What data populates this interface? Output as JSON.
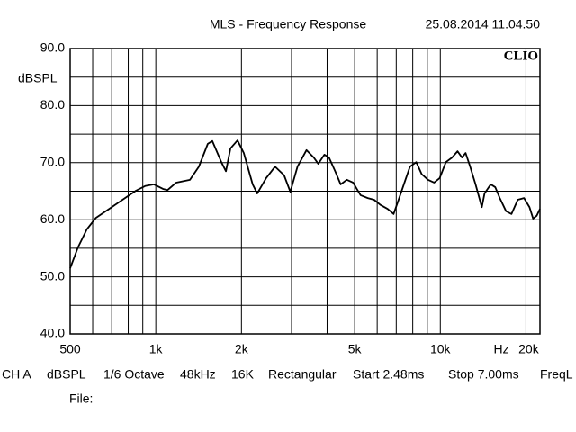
{
  "chart_data": {
    "type": "line",
    "title": "MLS - Frequency Response",
    "timestamp": "25.08.2014 11.04.50",
    "brand": "CLIO",
    "ylabel": "dBSPL",
    "xlabel": "Hz",
    "log_x": true,
    "grid": true,
    "color": "#000000",
    "xlim": [
      500,
      22400
    ],
    "ylim": [
      40,
      90
    ],
    "xticks": [
      500,
      {
        "value": 1000,
        "label": "1k"
      },
      {
        "value": 2000,
        "label": "2k"
      },
      {
        "value": 5000,
        "label": "5k"
      },
      {
        "value": 10000,
        "label": "10k"
      },
      {
        "value": 20000,
        "label": "20k"
      }
    ],
    "xminor": [
      600,
      700,
      800,
      900,
      3000,
      4000,
      6000,
      7000,
      8000,
      9000
    ],
    "yticks": [
      {
        "value": 40,
        "label": "40.0"
      },
      {
        "value": 50,
        "label": "50.0"
      },
      {
        "value": 60,
        "label": "60.0"
      },
      {
        "value": 70,
        "label": "70.0"
      },
      {
        "value": 80,
        "label": "80.0"
      },
      {
        "value": 90,
        "label": "90.0"
      }
    ],
    "yminor": [
      45,
      55,
      65,
      75,
      85
    ],
    "x": [
      500,
      532,
      572,
      615,
      686,
      764,
      852,
      917,
      985,
      1060,
      1100,
      1180,
      1318,
      1417,
      1523,
      1580,
      1700,
      1764,
      1830,
      1937,
      2038,
      2190,
      2272,
      2443,
      2626,
      2824,
      2970,
      3148,
      3386,
      3592,
      3724,
      3914,
      4063,
      4270,
      4464,
      4692,
      4936,
      5245,
      5556,
      5850,
      6157,
      6529,
      6852,
      7170,
      7541,
      7822,
      8230,
      8600,
      9049,
      9513,
      9950,
      10461,
      10998,
      11497,
      11919,
      12270,
      12732,
      13300,
      13995,
      14304,
      15042,
      15600,
      16182,
      17023,
      17787,
      18720,
      19692,
      20580,
      21190,
      21820,
      22400
    ],
    "values": [
      51.5,
      55.1,
      58.3,
      60.3,
      61.9,
      63.5,
      65.1,
      65.9,
      66.2,
      65.4,
      65.2,
      66.5,
      67.0,
      69.3,
      73.3,
      73.8,
      70.1,
      68.5,
      72.5,
      73.9,
      71.7,
      66.2,
      64.6,
      67.3,
      69.3,
      67.8,
      64.9,
      69.3,
      72.2,
      70.9,
      69.8,
      71.4,
      70.9,
      68.5,
      66.2,
      67.0,
      66.5,
      64.3,
      63.8,
      63.5,
      62.6,
      61.9,
      61.0,
      63.8,
      67.0,
      69.3,
      70.1,
      68.0,
      67.0,
      66.5,
      67.3,
      70.1,
      70.9,
      72.0,
      70.9,
      71.7,
      69.3,
      66.2,
      62.2,
      64.6,
      66.2,
      65.7,
      63.8,
      61.5,
      61.0,
      63.5,
      63.8,
      62.2,
      60.2,
      60.7,
      61.9
    ],
    "footer": [
      "CH A",
      "dBSPL",
      "1/6 Octave",
      "48kHz",
      "16K",
      "Rectangular",
      "Start 2.48ms",
      "Stop 7.00ms",
      "FreqL"
    ],
    "file_label": "File:"
  }
}
